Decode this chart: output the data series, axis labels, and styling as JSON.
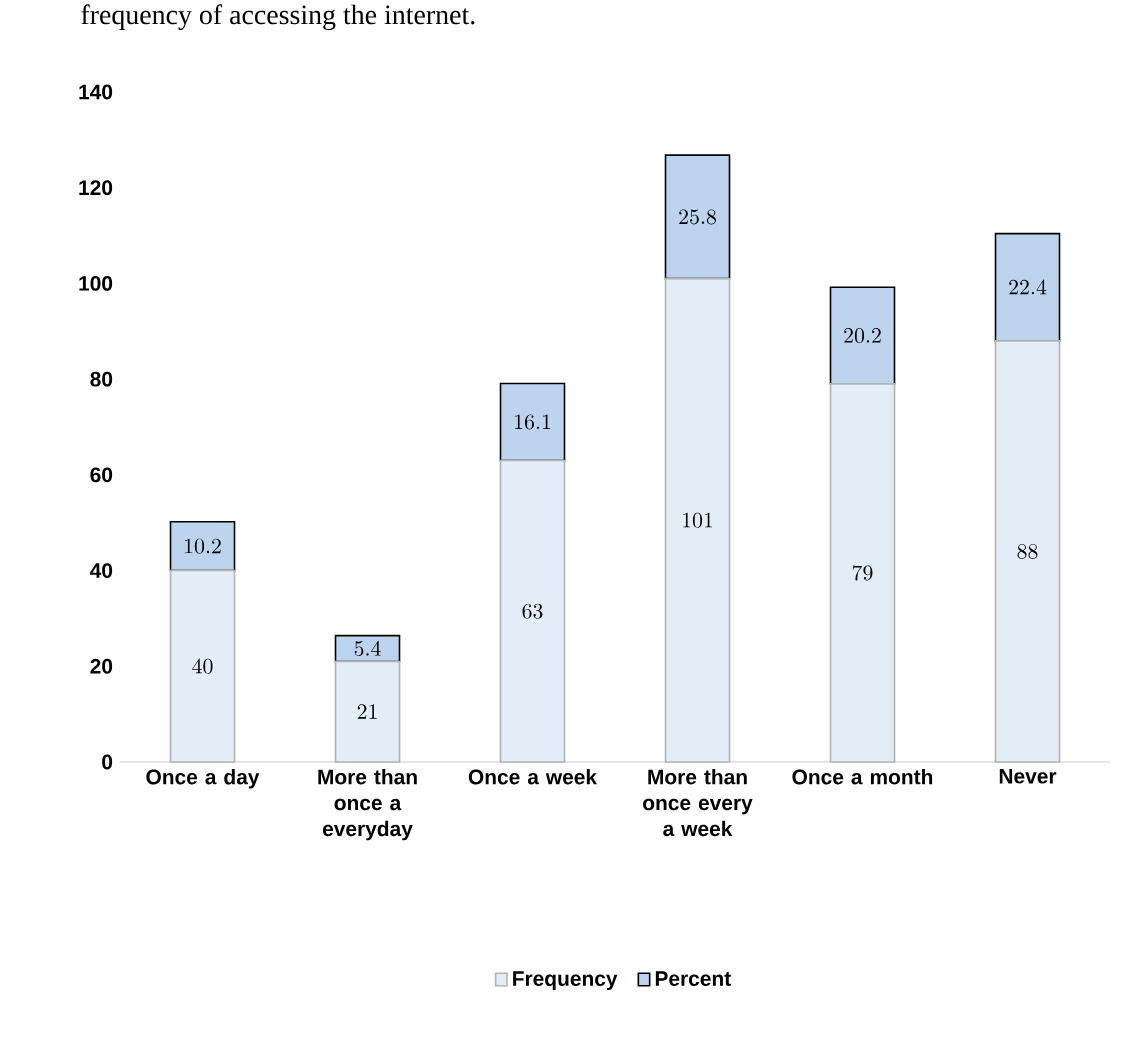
{
  "chart_data": {
    "type": "bar",
    "stacked": true,
    "title": "frequency of accessing the internet.",
    "categories": [
      "Once a day",
      "More than once a everyday",
      "Once a week",
      "More than once every a week",
      "Once a month",
      "Never"
    ],
    "series": [
      {
        "name": "Frequency",
        "color": "#e3edf8",
        "values": [
          40,
          21,
          63,
          101,
          79,
          88
        ]
      },
      {
        "name": "Percent",
        "color": "#bdd4ee",
        "values": [
          10.2,
          5.4,
          16.1,
          25.8,
          20.2,
          22.4
        ]
      }
    ],
    "ylim": [
      0,
      140
    ],
    "yticks": [
      0,
      20,
      40,
      60,
      80,
      100,
      120,
      140
    ],
    "data_labels": true,
    "legend": "bottom",
    "grid": false
  }
}
